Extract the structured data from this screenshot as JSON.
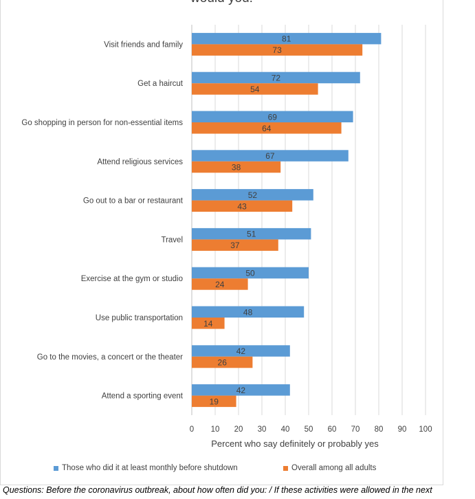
{
  "title": "would you:",
  "caption": "Questions: Before the coronavirus outbreak, about how often did you: / If these activities were allowed in the next",
  "chart_data": {
    "type": "bar",
    "orientation": "horizontal",
    "categories": [
      "Visit friends and family",
      "Get a haircut",
      "Go shopping in person for non-essential items",
      "Attend religious services",
      "Go out to a bar or restaurant",
      "Travel",
      "Exercise at the gym or studio",
      "Use public transportation",
      "Go to the movies, a concert or the theater",
      "Attend a sporting event"
    ],
    "series": [
      {
        "name": "Those who did it at least monthly before shutdown",
        "color": "#5b9bd5",
        "values": [
          81,
          72,
          69,
          67,
          52,
          51,
          50,
          48,
          42,
          42
        ]
      },
      {
        "name": "Overall among all adults",
        "color": "#ed7d31",
        "values": [
          73,
          54,
          64,
          38,
          43,
          37,
          24,
          14,
          26,
          19
        ]
      }
    ],
    "xlabel": "Percent who say definitely or probably yes",
    "xlim": [
      0,
      100
    ],
    "xticks": [
      0,
      10,
      20,
      30,
      40,
      50,
      60,
      70,
      80,
      90,
      100
    ],
    "grid": "vertical",
    "legend_position": "bottom"
  }
}
